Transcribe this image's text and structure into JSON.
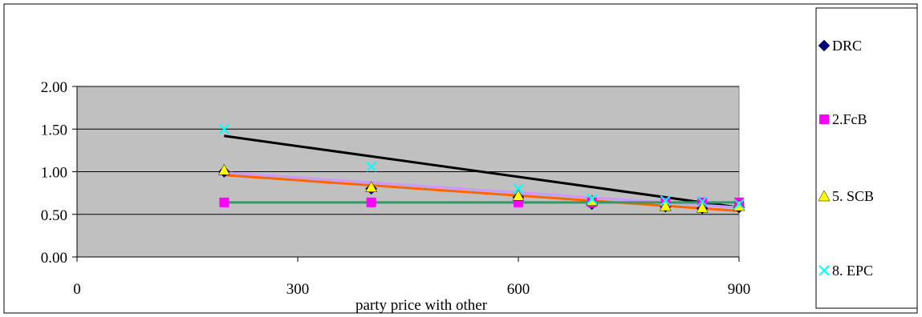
{
  "chart_data": {
    "type": "scatter",
    "title": "",
    "xlabel": "party price with other",
    "ylabel": "",
    "xlim": [
      0,
      900
    ],
    "ylim": [
      0,
      2
    ],
    "x_ticks": [
      "0",
      "300",
      "600",
      "900"
    ],
    "x_tick_values": [
      0,
      300,
      600,
      900
    ],
    "y_ticks": [
      "0.00",
      "0.50",
      "1.00",
      "1.50",
      "2.00"
    ],
    "y_tick_values": [
      0,
      0.5,
      1.0,
      1.5,
      2.0
    ],
    "plot_background": "#c0c0c0",
    "grid": "horizontal",
    "legend_position": "right",
    "series": [
      {
        "name": "DRC",
        "marker": "diamond",
        "color": "#000080",
        "x": [
          200,
          400,
          600,
          700,
          800,
          850,
          900
        ],
        "y": [
          1.0,
          0.8,
          0.7,
          0.62,
          0.59,
          0.57,
          0.58
        ]
      },
      {
        "name": "2.FcB",
        "marker": "square",
        "color": "#ff00ff",
        "x": [
          200,
          400,
          600,
          700,
          800,
          850,
          900
        ],
        "y": [
          0.64,
          0.64,
          0.64,
          0.64,
          0.64,
          0.64,
          0.64
        ]
      },
      {
        "name": "5. SCB",
        "marker": "triangle",
        "color": "#ffff00",
        "x": [
          200,
          400,
          600,
          700,
          800,
          850,
          900
        ],
        "y": [
          1.02,
          0.82,
          0.72,
          0.66,
          0.6,
          0.58,
          0.6
        ]
      },
      {
        "name": "8. EPC",
        "marker": "x",
        "color": "#00ffff",
        "x": [
          200,
          400,
          600,
          700,
          800,
          850,
          900
        ],
        "y": [
          1.5,
          1.06,
          0.8,
          0.68,
          0.66,
          0.65,
          0.62
        ]
      }
    ],
    "trendlines": [
      {
        "color": "#000000",
        "x": [
          200,
          900
        ],
        "y": [
          1.42,
          0.58
        ]
      },
      {
        "color": "#cc99ff",
        "x": [
          200,
          900
        ],
        "y": [
          0.99,
          0.58
        ]
      },
      {
        "color": "#ff6600",
        "x": [
          200,
          900
        ],
        "y": [
          0.96,
          0.54
        ]
      },
      {
        "color": "#339966",
        "x": [
          200,
          900
        ],
        "y": [
          0.64,
          0.64
        ]
      }
    ]
  }
}
